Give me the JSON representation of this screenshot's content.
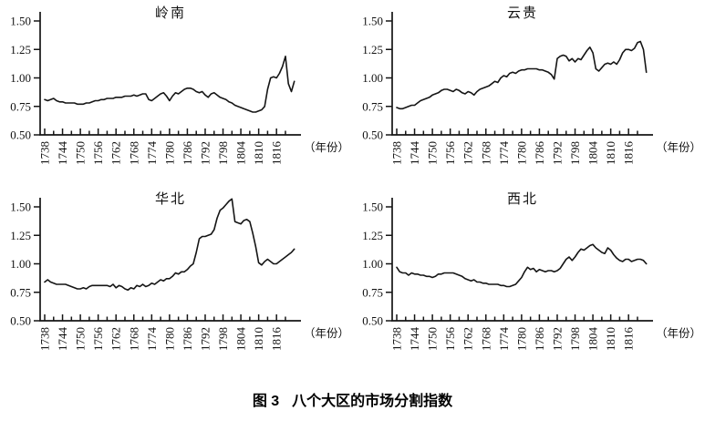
{
  "figure_caption": {
    "figure_label": "图 3",
    "title": "八个大区的市场分割指数"
  },
  "axis": {
    "x_major_tick_labels": [
      "1738",
      "1744",
      "1750",
      "1756",
      "1762",
      "1768",
      "1774",
      "1780",
      "1786",
      "1792",
      "1798",
      "1804",
      "1810",
      "1816"
    ],
    "x_major_tick_step_years": 6,
    "x_minor_tick_step_years": 3,
    "x_last_minor_tick_year": 1819,
    "x_axis_end_year": 1823,
    "x_unit_label": "（年份）",
    "y_tick_labels": [
      "0.50",
      "0.75",
      "1.00",
      "1.25",
      "1.50"
    ],
    "ylim": [
      0.5,
      1.5
    ],
    "grid": false,
    "legend": "none"
  },
  "line_color": "#151515",
  "chart_data": [
    {
      "type": "line",
      "title": "岭南",
      "x_start_year": 1738,
      "x_step_years": 1,
      "xlabel": "（年份）",
      "ylabel": "",
      "ylim": [
        0.5,
        1.5
      ],
      "values": [
        0.81,
        0.8,
        0.81,
        0.82,
        0.8,
        0.79,
        0.79,
        0.78,
        0.78,
        0.78,
        0.78,
        0.77,
        0.77,
        0.77,
        0.78,
        0.78,
        0.79,
        0.8,
        0.8,
        0.81,
        0.81,
        0.82,
        0.82,
        0.82,
        0.83,
        0.83,
        0.83,
        0.84,
        0.84,
        0.84,
        0.85,
        0.84,
        0.85,
        0.86,
        0.86,
        0.81,
        0.8,
        0.82,
        0.84,
        0.86,
        0.87,
        0.84,
        0.8,
        0.84,
        0.87,
        0.86,
        0.88,
        0.9,
        0.91,
        0.91,
        0.9,
        0.88,
        0.87,
        0.88,
        0.85,
        0.83,
        0.86,
        0.87,
        0.85,
        0.83,
        0.82,
        0.81,
        0.79,
        0.78,
        0.76,
        0.75,
        0.74,
        0.73,
        0.72,
        0.71,
        0.7,
        0.7,
        0.71,
        0.72,
        0.75,
        0.9,
        1.0,
        1.01,
        1.0,
        1.04,
        1.1,
        1.19,
        0.95,
        0.88,
        0.97
      ]
    },
    {
      "type": "line",
      "title": "云贵",
      "x_start_year": 1738,
      "x_step_years": 1,
      "xlabel": "（年份）",
      "ylabel": "",
      "ylim": [
        0.5,
        1.5
      ],
      "values": [
        0.74,
        0.73,
        0.73,
        0.74,
        0.75,
        0.76,
        0.76,
        0.78,
        0.8,
        0.81,
        0.82,
        0.83,
        0.85,
        0.86,
        0.87,
        0.89,
        0.9,
        0.9,
        0.89,
        0.88,
        0.9,
        0.89,
        0.87,
        0.86,
        0.88,
        0.87,
        0.85,
        0.88,
        0.9,
        0.91,
        0.92,
        0.93,
        0.95,
        0.97,
        0.96,
        1.0,
        1.02,
        1.01,
        1.04,
        1.05,
        1.04,
        1.06,
        1.07,
        1.07,
        1.08,
        1.08,
        1.08,
        1.08,
        1.07,
        1.07,
        1.06,
        1.05,
        1.03,
        0.99,
        1.17,
        1.19,
        1.2,
        1.19,
        1.15,
        1.17,
        1.14,
        1.17,
        1.16,
        1.2,
        1.24,
        1.27,
        1.22,
        1.08,
        1.06,
        1.09,
        1.12,
        1.13,
        1.12,
        1.14,
        1.12,
        1.16,
        1.22,
        1.25,
        1.25,
        1.24,
        1.26,
        1.31,
        1.32,
        1.25,
        1.05
      ]
    },
    {
      "type": "line",
      "title": "华北",
      "x_start_year": 1738,
      "x_step_years": 1,
      "xlabel": "（年份）",
      "ylabel": "",
      "ylim": [
        0.5,
        1.5
      ],
      "values": [
        0.84,
        0.86,
        0.84,
        0.83,
        0.82,
        0.82,
        0.82,
        0.82,
        0.81,
        0.8,
        0.79,
        0.78,
        0.78,
        0.79,
        0.78,
        0.8,
        0.81,
        0.81,
        0.81,
        0.81,
        0.81,
        0.81,
        0.8,
        0.82,
        0.79,
        0.81,
        0.8,
        0.78,
        0.77,
        0.79,
        0.78,
        0.81,
        0.8,
        0.82,
        0.8,
        0.81,
        0.83,
        0.82,
        0.84,
        0.86,
        0.85,
        0.87,
        0.87,
        0.89,
        0.92,
        0.91,
        0.93,
        0.93,
        0.95,
        0.98,
        1.0,
        1.1,
        1.22,
        1.24,
        1.24,
        1.25,
        1.26,
        1.3,
        1.4,
        1.47,
        1.49,
        1.52,
        1.55,
        1.57,
        1.37,
        1.36,
        1.35,
        1.38,
        1.39,
        1.37,
        1.27,
        1.15,
        1.01,
        0.99,
        1.02,
        1.04,
        1.02,
        1.0,
        1.0,
        1.02,
        1.04,
        1.06,
        1.08,
        1.1,
        1.13
      ]
    },
    {
      "type": "line",
      "title": "西北",
      "x_start_year": 1738,
      "x_step_years": 1,
      "xlabel": "（年份）",
      "ylabel": "",
      "ylim": [
        0.5,
        1.5
      ],
      "values": [
        0.97,
        0.93,
        0.92,
        0.92,
        0.9,
        0.92,
        0.91,
        0.91,
        0.9,
        0.9,
        0.89,
        0.89,
        0.88,
        0.89,
        0.91,
        0.91,
        0.92,
        0.92,
        0.92,
        0.92,
        0.91,
        0.9,
        0.89,
        0.87,
        0.86,
        0.85,
        0.86,
        0.84,
        0.84,
        0.83,
        0.83,
        0.82,
        0.82,
        0.82,
        0.82,
        0.81,
        0.81,
        0.8,
        0.8,
        0.81,
        0.82,
        0.85,
        0.88,
        0.93,
        0.97,
        0.95,
        0.96,
        0.93,
        0.95,
        0.94,
        0.93,
        0.94,
        0.94,
        0.93,
        0.94,
        0.96,
        1.0,
        1.04,
        1.06,
        1.03,
        1.06,
        1.1,
        1.13,
        1.12,
        1.14,
        1.16,
        1.17,
        1.14,
        1.12,
        1.1,
        1.09,
        1.14,
        1.12,
        1.08,
        1.05,
        1.03,
        1.02,
        1.04,
        1.04,
        1.02,
        1.03,
        1.04,
        1.04,
        1.03,
        1.0
      ]
    }
  ]
}
